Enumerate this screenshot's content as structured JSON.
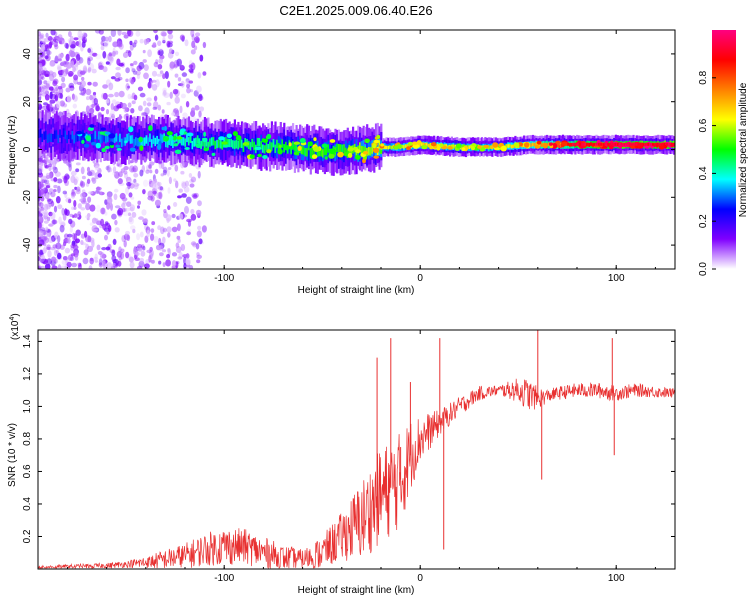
{
  "title": "C2E1.2025.009.06.40.E26",
  "chart_data": [
    {
      "type": "heatmap",
      "xlabel": "Height of straight line (km)",
      "ylabel": "Frequency (Hz)",
      "xlim": [
        -195,
        130
      ],
      "ylim": [
        -50,
        50
      ],
      "xticks": [
        -100,
        0,
        100
      ],
      "xtick_labels": [
        "-100",
        "0",
        "100"
      ],
      "yticks": [
        -40,
        -20,
        0,
        20,
        40
      ],
      "ytick_labels": [
        "-40",
        "-20",
        "0",
        "20",
        "40"
      ],
      "colorbar": {
        "label": "Normalized spectral amplitude",
        "range": [
          0,
          1
        ],
        "ticks": [
          0.0,
          0.2,
          0.4,
          0.6,
          0.8
        ],
        "tick_labels": [
          "0.0",
          "0.2",
          "0.4",
          "0.6",
          "0.8"
        ],
        "colors": [
          "#ffffff",
          "#8000ff",
          "#0000ff",
          "#00ffff",
          "#00ff00",
          "#ffff00",
          "#ff8000",
          "#ff0000",
          "#ff0080"
        ]
      },
      "ridge_frequency": [
        [
          -190,
          6
        ],
        [
          -170,
          5
        ],
        [
          -150,
          4
        ],
        [
          -130,
          4
        ],
        [
          -110,
          3
        ],
        [
          -90,
          2
        ],
        [
          -70,
          1
        ],
        [
          -55,
          0
        ],
        [
          -40,
          -1
        ],
        [
          -30,
          0
        ],
        [
          -20,
          1
        ],
        [
          -10,
          1
        ],
        [
          0,
          2
        ],
        [
          20,
          1
        ],
        [
          40,
          1
        ],
        [
          55,
          2
        ],
        [
          70,
          2
        ],
        [
          90,
          2
        ],
        [
          110,
          2
        ],
        [
          130,
          2
        ]
      ],
      "ridge_amplitude": [
        [
          -190,
          0.25
        ],
        [
          -160,
          0.3
        ],
        [
          -140,
          0.35
        ],
        [
          -120,
          0.4
        ],
        [
          -100,
          0.45
        ],
        [
          -80,
          0.45
        ],
        [
          -60,
          0.5
        ],
        [
          -40,
          0.5
        ],
        [
          -20,
          0.6
        ],
        [
          0,
          0.65
        ],
        [
          20,
          0.6
        ],
        [
          40,
          0.6
        ],
        [
          60,
          0.7
        ],
        [
          80,
          0.85
        ],
        [
          100,
          0.9
        ],
        [
          130,
          0.95
        ]
      ]
    },
    {
      "type": "line",
      "xlabel": "Height of straight line (km)",
      "ylabel": "SNR (10 * v/v)",
      "y_multiplier_label": "(x10",
      "y_multiplier_exp": "4",
      "y_multiplier_close": ")",
      "xlim": [
        -195,
        130
      ],
      "ylim": [
        0,
        1.47
      ],
      "xticks": [
        -100,
        0,
        100
      ],
      "xtick_labels": [
        "-100",
        "0",
        "100"
      ],
      "yticks": [
        0.2,
        0.4,
        0.6,
        0.8,
        1.0,
        1.2,
        1.4
      ],
      "ytick_labels": [
        "0.2",
        "0.4",
        "0.6",
        "0.8",
        "1.0",
        "1.2",
        "1.4"
      ],
      "color": "#e83030",
      "envelope": [
        [
          -195,
          0.01
        ],
        [
          -160,
          0.02
        ],
        [
          -140,
          0.04
        ],
        [
          -120,
          0.08
        ],
        [
          -110,
          0.12
        ],
        [
          -100,
          0.14
        ],
        [
          -90,
          0.14
        ],
        [
          -80,
          0.1
        ],
        [
          -70,
          0.07
        ],
        [
          -60,
          0.06
        ],
        [
          -50,
          0.1
        ],
        [
          -40,
          0.2
        ],
        [
          -30,
          0.3
        ],
        [
          -20,
          0.45
        ],
        [
          -10,
          0.55
        ],
        [
          -5,
          0.7
        ],
        [
          0,
          0.8
        ],
        [
          10,
          0.9
        ],
        [
          20,
          1.0
        ],
        [
          30,
          1.08
        ],
        [
          40,
          1.1
        ],
        [
          50,
          1.1
        ],
        [
          60,
          1.05
        ],
        [
          70,
          1.08
        ],
        [
          80,
          1.1
        ],
        [
          90,
          1.1
        ],
        [
          100,
          1.08
        ],
        [
          110,
          1.1
        ],
        [
          130,
          1.08
        ]
      ],
      "noise": [
        [
          -195,
          0.01
        ],
        [
          -150,
          0.02
        ],
        [
          -120,
          0.08
        ],
        [
          -100,
          0.12
        ],
        [
          -80,
          0.1
        ],
        [
          -60,
          0.06
        ],
        [
          -40,
          0.15
        ],
        [
          -30,
          0.25
        ],
        [
          -20,
          0.3
        ],
        [
          -10,
          0.3
        ],
        [
          0,
          0.15
        ],
        [
          10,
          0.08
        ],
        [
          20,
          0.06
        ],
        [
          40,
          0.03
        ],
        [
          55,
          0.1
        ],
        [
          65,
          0.04
        ],
        [
          95,
          0.05
        ],
        [
          130,
          0.03
        ]
      ],
      "spikes": [
        [
          -22,
          1.3
        ],
        [
          -15,
          1.42
        ],
        [
          -10,
          0.75
        ],
        [
          -5,
          1.15
        ],
        [
          10,
          1.42
        ],
        [
          12,
          0.12
        ],
        [
          60,
          1.47
        ],
        [
          62,
          0.55
        ],
        [
          98,
          1.42
        ],
        [
          99,
          0.7
        ]
      ]
    }
  ]
}
